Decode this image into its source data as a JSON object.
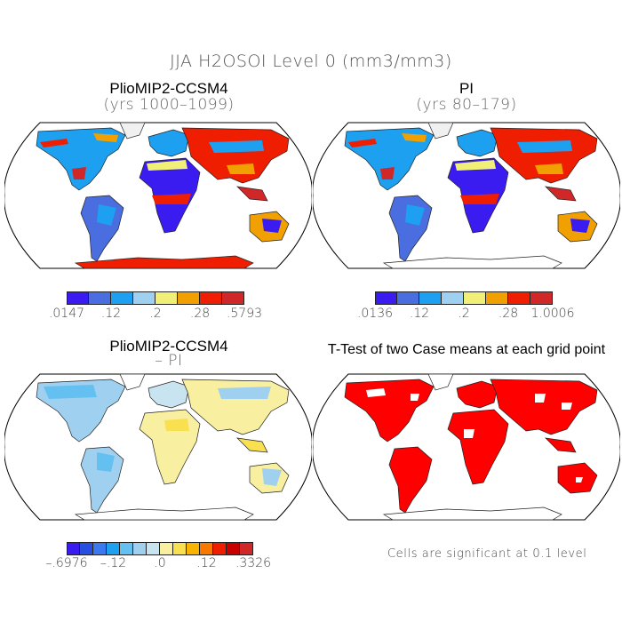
{
  "main_title": "JJA H2OSOI Level 0 (mm3/mm3)",
  "panels": {
    "top_left": {
      "title": "PlioMIP2-CCSM4",
      "subtitle": "(yrs 1000–1099)"
    },
    "top_right": {
      "title": "PI",
      "subtitle": "(yrs 80–179)"
    },
    "bottom_left": {
      "title": "PlioMIP2-CCSM4",
      "subtitle": "– PI"
    },
    "bottom_right": {
      "title": "T-Test of two Case means at each grid point"
    }
  },
  "colorbars": {
    "top_left": {
      "colors": [
        "#3a1cf0",
        "#4a6ee0",
        "#1ea0f0",
        "#a0d0f0",
        "#f0f078",
        "#f0a000",
        "#f01e00",
        "#d02828"
      ],
      "labels": [
        ".0147",
        ".12",
        ".2",
        ".28",
        ".5793"
      ]
    },
    "top_right": {
      "colors": [
        "#3a1cf0",
        "#4a6ee0",
        "#1ea0f0",
        "#a0d0f0",
        "#f0f078",
        "#f0a000",
        "#f01e00",
        "#d02828"
      ],
      "labels": [
        ".0136",
        ".12",
        ".2",
        ".28",
        "1.0006"
      ]
    },
    "bottom_left": {
      "colors": [
        "#3a1cf0",
        "#2850e0",
        "#3c78f0",
        "#1ea0f0",
        "#64c0f0",
        "#a0d0f0",
        "#c8e4f0",
        "#f8f0a0",
        "#f8e050",
        "#f8b400",
        "#f87800",
        "#f01e00",
        "#c80000",
        "#d02828"
      ],
      "labels": [
        "–.6976",
        "–.12",
        ".0",
        ".12",
        ".3326"
      ]
    }
  },
  "significance_note": "Cells are significant at 0.1 level",
  "map_colors": {
    "frame": "#000000",
    "significant": "#ff0000"
  }
}
